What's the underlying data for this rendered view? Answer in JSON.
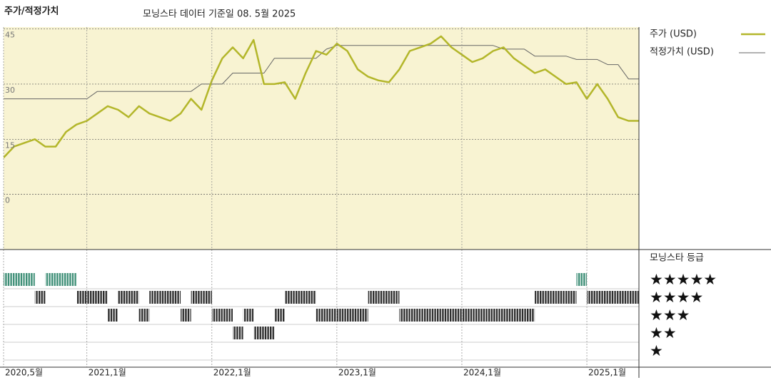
{
  "chart_data": [
    {
      "type": "line",
      "title": "주가/적정가치",
      "subtitle": "모닝스타 데이터 기준일 08. 5월 2025",
      "x": [
        "2020-05",
        "2020-06",
        "2020-07",
        "2020-08",
        "2020-09",
        "2020-10",
        "2020-11",
        "2020-12",
        "2021-01",
        "2021-02",
        "2021-03",
        "2021-04",
        "2021-05",
        "2021-06",
        "2021-07",
        "2021-08",
        "2021-09",
        "2021-10",
        "2021-11",
        "2021-12",
        "2022-01",
        "2022-02",
        "2022-03",
        "2022-04",
        "2022-05",
        "2022-06",
        "2022-07",
        "2022-08",
        "2022-09",
        "2022-10",
        "2022-11",
        "2022-12",
        "2023-01",
        "2023-02",
        "2023-03",
        "2023-04",
        "2023-05",
        "2023-06",
        "2023-07",
        "2023-08",
        "2023-09",
        "2023-10",
        "2023-11",
        "2023-12",
        "2024-01",
        "2024-02",
        "2024-03",
        "2024-04",
        "2024-05",
        "2024-06",
        "2024-07",
        "2024-08",
        "2024-09",
        "2024-10",
        "2024-11",
        "2024-12",
        "2025-01",
        "2025-02",
        "2025-03",
        "2025-04",
        "2025-05",
        "2025-06"
      ],
      "series": [
        {
          "name": "주가 (USD)",
          "color": "#b3b62a",
          "width": 2.5,
          "values": [
            10,
            13,
            14,
            15,
            13,
            13,
            17,
            19,
            20,
            22,
            24,
            23,
            21,
            24,
            22,
            21,
            20,
            22,
            26,
            23,
            31,
            37,
            40,
            37,
            42,
            30,
            30,
            30.5,
            26,
            33,
            39,
            38,
            41,
            39,
            34,
            32,
            31,
            30.5,
            34,
            39,
            40,
            41,
            43,
            40,
            38,
            36,
            37,
            39,
            40,
            37,
            35,
            33,
            34,
            32,
            30,
            30.5,
            26,
            30,
            26,
            21,
            20,
            20
          ]
        },
        {
          "name": "적정가치 (USD)",
          "color": "#666666",
          "width": 1,
          "values": [
            26,
            26,
            26,
            26,
            26,
            26,
            26,
            26,
            26,
            28,
            28,
            28,
            28,
            28,
            28,
            28,
            28,
            28,
            28,
            30,
            30,
            30,
            33,
            33,
            33,
            33,
            37,
            37,
            37,
            37,
            37,
            39.5,
            40.5,
            40.5,
            40.5,
            40.5,
            40.5,
            40.5,
            40.5,
            40.5,
            40.5,
            40.5,
            40.5,
            40.5,
            40.5,
            40.5,
            40.5,
            40.5,
            39.5,
            39.5,
            39.5,
            37.6,
            37.6,
            37.6,
            37.6,
            36.7,
            36.7,
            36.7,
            35.3,
            35.3,
            31.4,
            31.4
          ]
        }
      ],
      "xlim": [
        "2020-05",
        "2025-06"
      ],
      "xticks": [
        {
          "value": "2020-05",
          "label": "2020,5월"
        },
        {
          "value": "2021-01",
          "label": "2021,1월"
        },
        {
          "value": "2022-01",
          "label": "2022,1월"
        },
        {
          "value": "2023-01",
          "label": "2023,1월"
        },
        {
          "value": "2024-01",
          "label": "2024,1월"
        },
        {
          "value": "2025-01",
          "label": "2025,1월"
        }
      ],
      "ylim": [
        -15,
        45.5
      ],
      "yticks": [
        0,
        15,
        30,
        45
      ],
      "grid": true
    },
    {
      "type": "rating",
      "title": "모닝스타 등급",
      "x": [
        "2020-05",
        "2020-06",
        "2020-07",
        "2020-08",
        "2020-09",
        "2020-10",
        "2020-11",
        "2020-12",
        "2021-01",
        "2021-02",
        "2021-03",
        "2021-04",
        "2021-05",
        "2021-06",
        "2021-07",
        "2021-08",
        "2021-09",
        "2021-10",
        "2021-11",
        "2021-12",
        "2022-01",
        "2022-02",
        "2022-03",
        "2022-04",
        "2022-05",
        "2022-06",
        "2022-07",
        "2022-08",
        "2022-09",
        "2022-10",
        "2022-11",
        "2022-12",
        "2023-01",
        "2023-02",
        "2023-03",
        "2023-04",
        "2023-05",
        "2023-06",
        "2023-07",
        "2023-08",
        "2023-09",
        "2023-10",
        "2023-11",
        "2023-12",
        "2024-01",
        "2024-02",
        "2024-03",
        "2024-04",
        "2024-05",
        "2024-06",
        "2024-07",
        "2024-08",
        "2024-09",
        "2024-10",
        "2024-11",
        "2024-12",
        "2025-01",
        "2025-02",
        "2025-03",
        "2025-04",
        "2025-05",
        "2025-06"
      ],
      "values": [
        5,
        5,
        5,
        4,
        5,
        5,
        5,
        4,
        4,
        4,
        3,
        4,
        4,
        3,
        4,
        4,
        4,
        3,
        4,
        4,
        3,
        3,
        2,
        3,
        2,
        2,
        3,
        4,
        4,
        4,
        3,
        3,
        3,
        3,
        3,
        4,
        4,
        4,
        3,
        3,
        3,
        3,
        3,
        3,
        3,
        3,
        3,
        3,
        3,
        3,
        3,
        4,
        4,
        4,
        4,
        5,
        4,
        4,
        4,
        4,
        4,
        4
      ],
      "levels": [
        {
          "value": 5,
          "label": "★★★★★",
          "color": "#3f8f77"
        },
        {
          "value": 4,
          "label": "★★★★",
          "color": "#2e2e2e"
        },
        {
          "value": 3,
          "label": "★★★",
          "color": "#2e2e2e"
        },
        {
          "value": 2,
          "label": "★★",
          "color": "#2e2e2e"
        },
        {
          "value": 1,
          "label": "★",
          "color": "#2e2e2e"
        }
      ]
    }
  ]
}
